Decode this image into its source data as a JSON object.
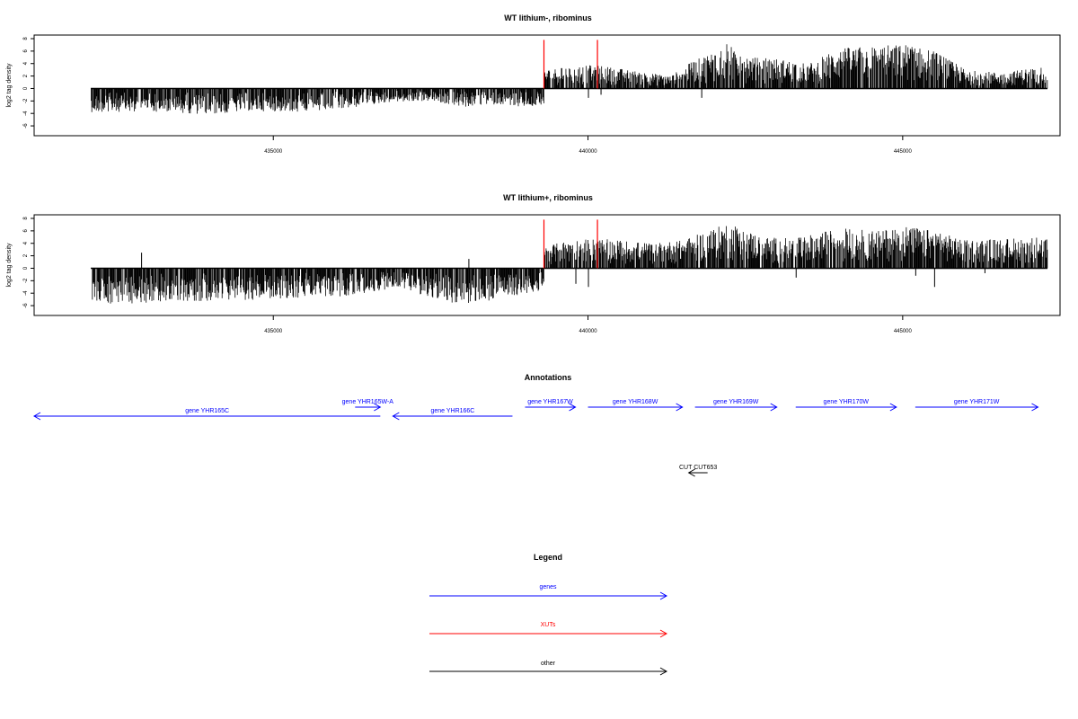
{
  "chart_data": [
    {
      "type": "bar",
      "title": "WT lithium-, ribominus",
      "ylabel": "log2 tag density",
      "xlabel": "",
      "xlim": [
        431200,
        447500
      ],
      "ylim": [
        -7,
        8
      ],
      "x_ticks": [
        435000,
        440000,
        445000
      ],
      "y_ticks": [
        -6,
        -4,
        -2,
        0,
        2,
        4,
        6,
        8
      ],
      "grid": false,
      "series": [
        {
          "strand": "minus",
          "x_range": [
            432100,
            439300
          ],
          "envelope": [
            {
              "x": 432100,
              "y": -3.8
            },
            {
              "x": 433000,
              "y": -3.7
            },
            {
              "x": 434000,
              "y": -4.2
            },
            {
              "x": 434600,
              "y": -3.6
            },
            {
              "x": 435500,
              "y": -3.8
            },
            {
              "x": 436200,
              "y": -3.2
            },
            {
              "x": 436800,
              "y": -2.2
            },
            {
              "x": 437500,
              "y": -2.0
            },
            {
              "x": 438000,
              "y": -3.0
            },
            {
              "x": 438600,
              "y": -2.5
            },
            {
              "x": 439000,
              "y": -3.0
            },
            {
              "x": 439300,
              "y": -2.5
            }
          ]
        },
        {
          "strand": "plus",
          "x_range": [
            439300,
            447300
          ],
          "envelope": [
            {
              "x": 439300,
              "y": 3.0
            },
            {
              "x": 439700,
              "y": 3.5
            },
            {
              "x": 440100,
              "y": 3.8
            },
            {
              "x": 440500,
              "y": 3.2
            },
            {
              "x": 441300,
              "y": 2.0
            },
            {
              "x": 441600,
              "y": 4.0
            },
            {
              "x": 442200,
              "y": 7.2
            },
            {
              "x": 442600,
              "y": 5.0
            },
            {
              "x": 443000,
              "y": 4.8
            },
            {
              "x": 443500,
              "y": 4.0
            },
            {
              "x": 444000,
              "y": 6.5
            },
            {
              "x": 444500,
              "y": 6.8
            },
            {
              "x": 445000,
              "y": 7.2
            },
            {
              "x": 445500,
              "y": 6.0
            },
            {
              "x": 446000,
              "y": 3.0
            },
            {
              "x": 446600,
              "y": 2.5
            },
            {
              "x": 447100,
              "y": 3.5
            }
          ]
        },
        {
          "strand": "minus-on-plus",
          "points": [
            {
              "x": 440000,
              "y": -1.5
            },
            {
              "x": 440200,
              "y": -1.0
            },
            {
              "x": 441800,
              "y": -1.5
            }
          ]
        }
      ],
      "markers": [
        {
          "x": 439300,
          "color": "#ff0000"
        },
        {
          "x": 440150,
          "color": "#ff0000"
        }
      ]
    },
    {
      "type": "bar",
      "title": "WT lithium+, ribominus",
      "ylabel": "log2 tag density",
      "xlabel": "",
      "xlim": [
        431200,
        447500
      ],
      "ylim": [
        -7,
        8
      ],
      "x_ticks": [
        435000,
        440000,
        445000
      ],
      "y_ticks": [
        -6,
        -4,
        -2,
        0,
        2,
        4,
        6,
        8
      ],
      "grid": false,
      "series": [
        {
          "strand": "minus",
          "x_range": [
            432100,
            439300
          ],
          "envelope": [
            {
              "x": 432100,
              "y": -5.0
            },
            {
              "x": 432500,
              "y": -6.0
            },
            {
              "x": 433000,
              "y": -5.5
            },
            {
              "x": 434000,
              "y": -5.2
            },
            {
              "x": 435000,
              "y": -5.0
            },
            {
              "x": 435800,
              "y": -4.8
            },
            {
              "x": 436500,
              "y": -4.0
            },
            {
              "x": 437000,
              "y": -3.0
            },
            {
              "x": 437700,
              "y": -5.5
            },
            {
              "x": 438200,
              "y": -5.8
            },
            {
              "x": 438800,
              "y": -4.5
            },
            {
              "x": 439300,
              "y": -3.5
            }
          ]
        },
        {
          "strand": "plus",
          "x_range": [
            439300,
            447300
          ],
          "envelope": [
            {
              "x": 439300,
              "y": 3.5
            },
            {
              "x": 439700,
              "y": 4.5
            },
            {
              "x": 440100,
              "y": 4.8
            },
            {
              "x": 440500,
              "y": 4.5
            },
            {
              "x": 441000,
              "y": 4.0
            },
            {
              "x": 441500,
              "y": 4.5
            },
            {
              "x": 442200,
              "y": 7.2
            },
            {
              "x": 442800,
              "y": 5.0
            },
            {
              "x": 443300,
              "y": 4.8
            },
            {
              "x": 444000,
              "y": 6.5
            },
            {
              "x": 444600,
              "y": 6.0
            },
            {
              "x": 445000,
              "y": 7.0
            },
            {
              "x": 445500,
              "y": 6.0
            },
            {
              "x": 446000,
              "y": 4.5
            },
            {
              "x": 446600,
              "y": 4.8
            },
            {
              "x": 447100,
              "y": 5.0
            }
          ]
        },
        {
          "strand": "minus-on-plus",
          "points": [
            {
              "x": 439800,
              "y": -2.5
            },
            {
              "x": 440000,
              "y": -3.0
            },
            {
              "x": 443300,
              "y": -1.5
            },
            {
              "x": 445200,
              "y": -1.2
            },
            {
              "x": 445500,
              "y": -3.0
            },
            {
              "x": 446300,
              "y": -0.8
            }
          ]
        },
        {
          "strand": "plus-on-minus",
          "points": [
            {
              "x": 432900,
              "y": 2.5
            },
            {
              "x": 438100,
              "y": 1.5
            }
          ]
        }
      ],
      "markers": [
        {
          "x": 439300,
          "color": "#ff0000"
        },
        {
          "x": 440150,
          "color": "#ff0000"
        }
      ]
    }
  ],
  "annotations": {
    "title": "Annotations",
    "xlim": [
      431200,
      447500
    ],
    "features": [
      {
        "label": "gene YHR165C",
        "start": 431200,
        "end": 436700,
        "strand": "-",
        "row": 2,
        "color": "#0000ff"
      },
      {
        "label": "gene YHR165W-A",
        "start": 436300,
        "end": 436700,
        "strand": "+",
        "row": 1,
        "color": "#0000ff"
      },
      {
        "label": "gene YHR166C",
        "start": 436900,
        "end": 438800,
        "strand": "-",
        "row": 2,
        "color": "#0000ff"
      },
      {
        "label": "gene YHR167W",
        "start": 439000,
        "end": 439800,
        "strand": "+",
        "row": 1,
        "color": "#0000ff"
      },
      {
        "label": "gene YHR168W",
        "start": 440000,
        "end": 441500,
        "strand": "+",
        "row": 1,
        "color": "#0000ff"
      },
      {
        "label": "gene YHR169W",
        "start": 441700,
        "end": 443000,
        "strand": "+",
        "row": 1,
        "color": "#0000ff"
      },
      {
        "label": "gene YHR170W",
        "start": 443300,
        "end": 444900,
        "strand": "+",
        "row": 1,
        "color": "#0000ff"
      },
      {
        "label": "gene YHR171W",
        "start": 445200,
        "end": 447150,
        "strand": "+",
        "row": 1,
        "color": "#0000ff"
      },
      {
        "label": "CUT CUT653",
        "start": 441600,
        "end": 441900,
        "strand": "-",
        "row": 3,
        "color": "#000000"
      }
    ]
  },
  "legend": {
    "title": "Legend",
    "items": [
      {
        "label": "genes",
        "color": "#0000ff"
      },
      {
        "label": "XUTs",
        "color": "#ff0000"
      },
      {
        "label": "other",
        "color": "#000000"
      }
    ]
  }
}
